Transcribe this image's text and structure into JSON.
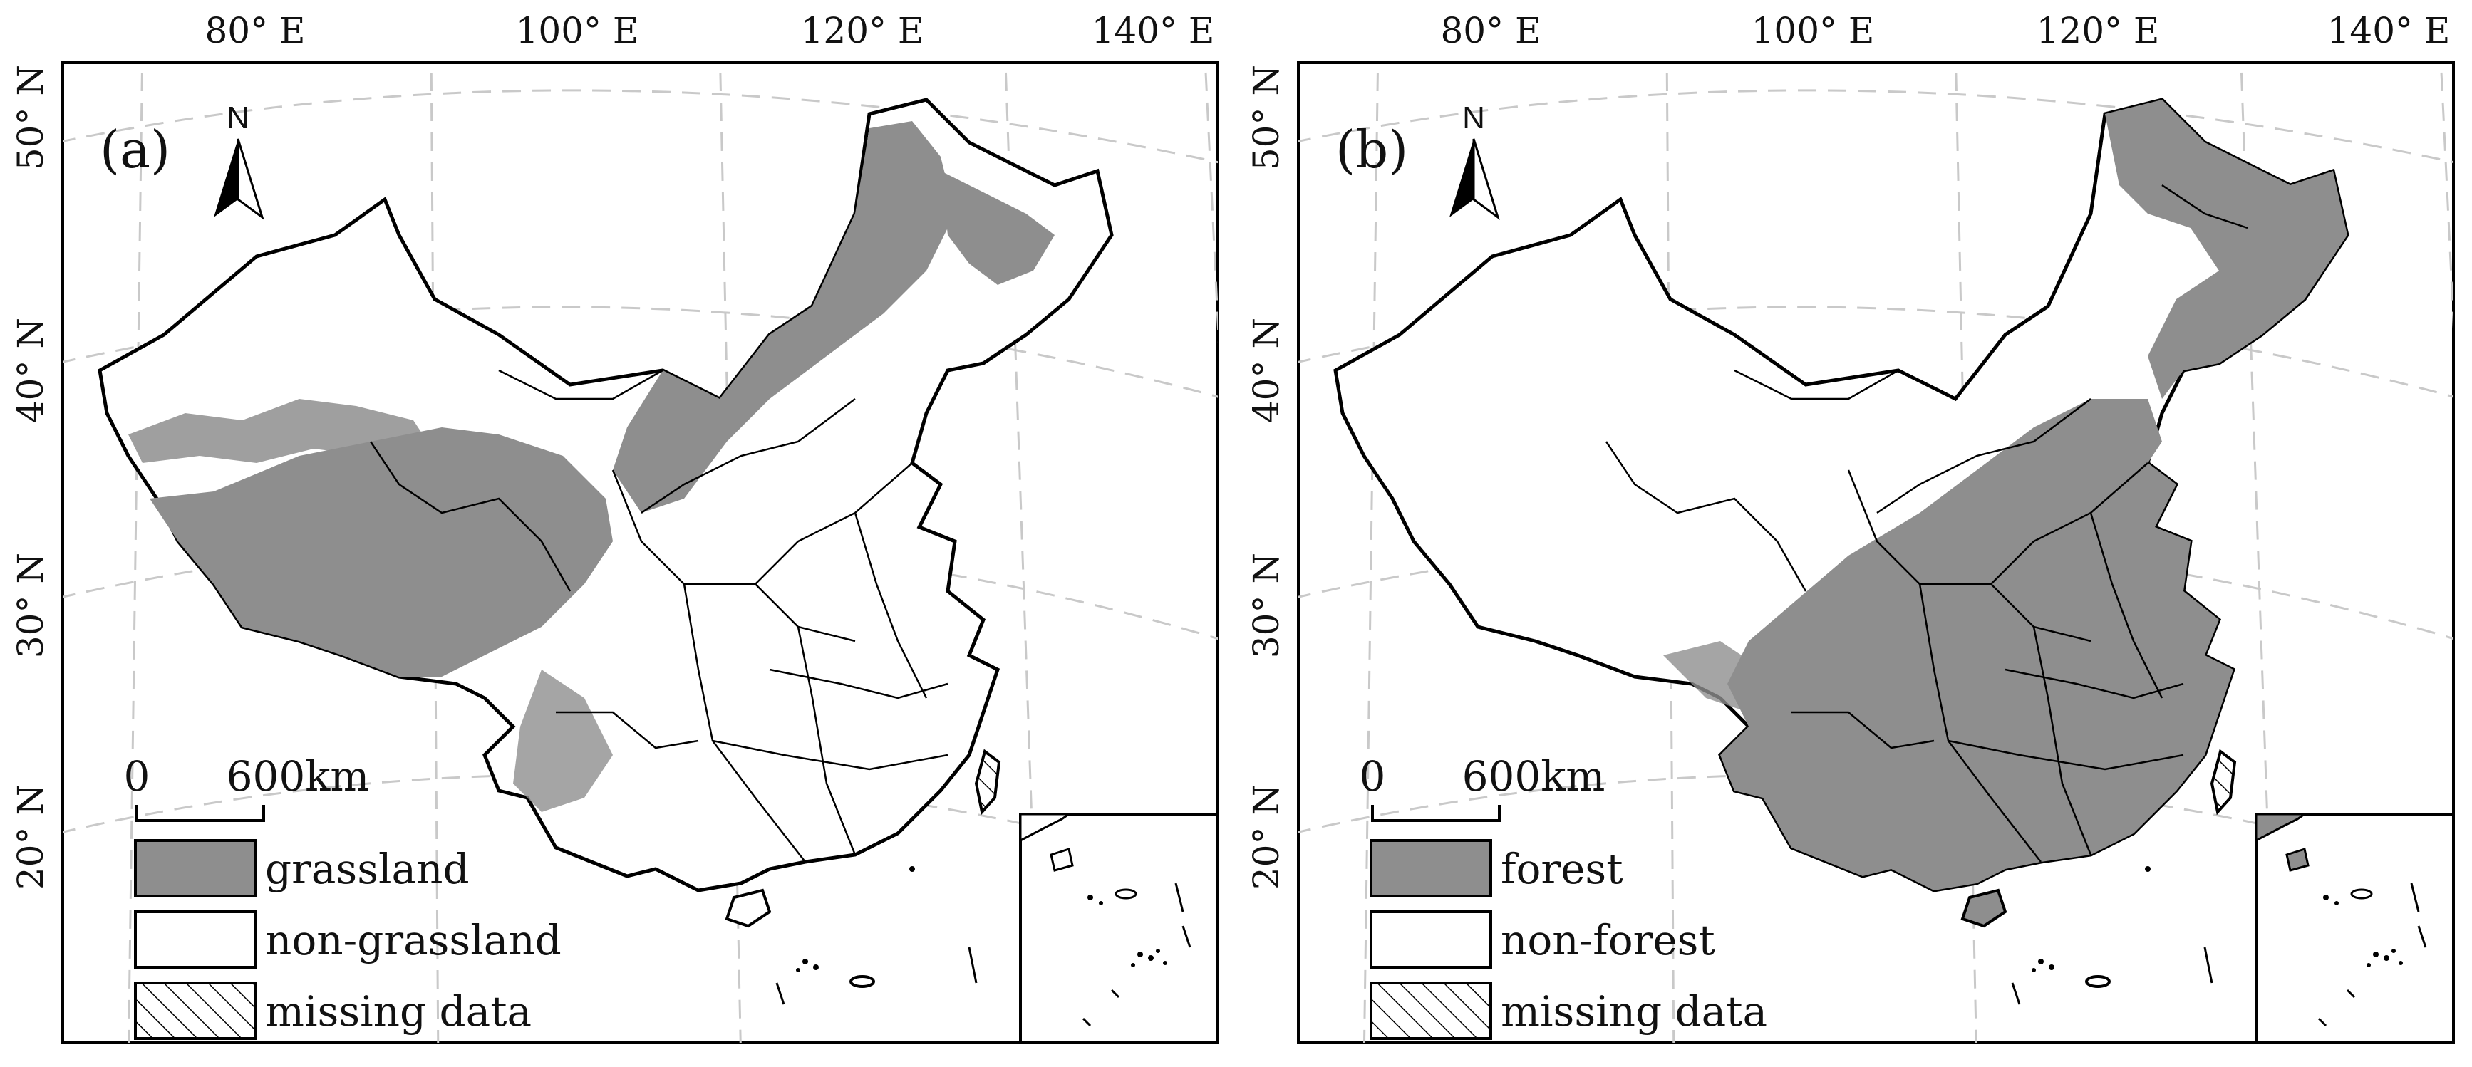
{
  "colors": {
    "class_fill": "#8e8e8e",
    "non_class_fill": "#ffffff",
    "border": "#000000",
    "graticule": "#c9c9c9"
  },
  "axes": {
    "lon_labels": [
      "80° E",
      "100° E",
      "120° E",
      "140° E"
    ],
    "lat_labels": [
      "50° N",
      "40° N",
      "30° N",
      "20° N"
    ]
  },
  "north_arrow": {
    "label": "N"
  },
  "scale_bar": {
    "start": "0",
    "end": "600km"
  },
  "panels": [
    {
      "id": "a",
      "label": "(a)",
      "legend": [
        {
          "label": "grassland",
          "swatch": "filled"
        },
        {
          "label": "non-grassland",
          "swatch": "empty"
        },
        {
          "label": "missing data",
          "swatch": "hatched"
        }
      ]
    },
    {
      "id": "b",
      "label": "(b)",
      "legend": [
        {
          "label": "forest",
          "swatch": "filled"
        },
        {
          "label": "non-forest",
          "swatch": "empty"
        },
        {
          "label": "missing data",
          "swatch": "hatched"
        }
      ]
    }
  ]
}
